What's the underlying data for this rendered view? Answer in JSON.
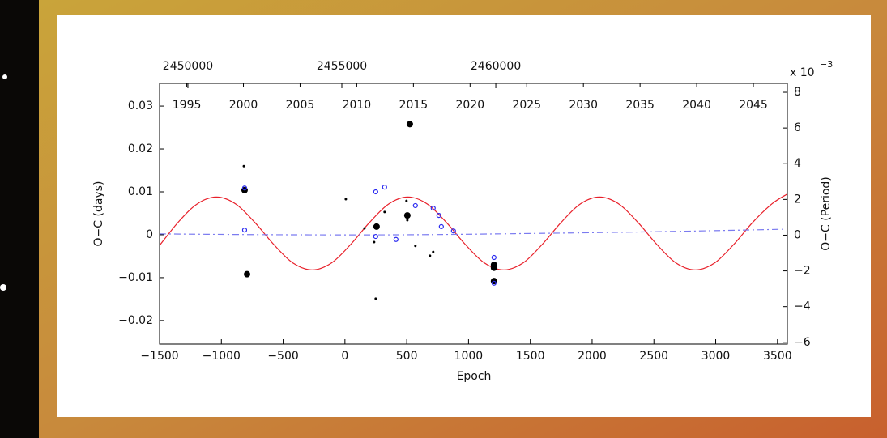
{
  "chart_data": {
    "type": "scatter",
    "xlabel": "Epoch",
    "ylabel": "O−C (days)",
    "y2label": "O−C (Period)",
    "y2_scale_label": "x 10",
    "y2_scale_exponent": "−3",
    "xlim": [
      -1500,
      3580
    ],
    "xticks": [
      {
        "value": -1500,
        "label": "−1500"
      },
      {
        "value": -1000,
        "label": "−1000"
      },
      {
        "value": -500,
        "label": "−500"
      },
      0,
      500,
      1000,
      1500,
      2000,
      2500,
      3000,
      3500
    ],
    "ylim": [
      -0.0255,
      0.0353
    ],
    "yticks": [
      {
        "value": -0.02,
        "label": "−0.02"
      },
      {
        "value": -0.01,
        "label": "−0.01"
      },
      0,
      0.01,
      0.02,
      0.03
    ],
    "y2lim": [
      -6.1,
      8.5
    ],
    "y2ticks": [
      {
        "value": -6,
        "label": "−6"
      },
      {
        "value": -4,
        "label": "−4"
      },
      {
        "value": -2,
        "label": "−2"
      },
      0,
      2,
      4,
      6,
      8
    ],
    "x2lim": [
      2449080,
      2469470
    ],
    "x2ticks": [
      2450000,
      2455000,
      2460000
    ],
    "x3lim": [
      1992.6,
      2048.0
    ],
    "x3ticks": [
      1995,
      2000,
      2005,
      2010,
      2015,
      2020,
      2025,
      2030,
      2035,
      2040,
      2045
    ],
    "series": [
      {
        "style": "line",
        "color": "#e8202a",
        "x": [
          -1500,
          -1350,
          -1195,
          -1040,
          -885,
          -730,
          -575,
          -420,
          -265,
          -110,
          45,
          200,
          355,
          510,
          665,
          820,
          975,
          1130,
          1285,
          1440,
          1595,
          1750,
          1905,
          2060,
          2215,
          2370,
          2525,
          2680,
          2835,
          2990,
          3145,
          3300,
          3455,
          3580
        ],
        "values": [
          -0.0025,
          0.0029,
          0.0072,
          0.0088,
          0.0072,
          0.0029,
          -0.0023,
          -0.0066,
          -0.0082,
          -0.0066,
          -0.0023,
          0.0029,
          0.0072,
          0.0088,
          0.0072,
          0.0029,
          -0.0023,
          -0.0066,
          -0.0082,
          -0.0066,
          -0.0023,
          0.0029,
          0.0072,
          0.0088,
          0.0072,
          0.0029,
          -0.0023,
          -0.0066,
          -0.0082,
          -0.0066,
          -0.0023,
          0.0029,
          0.0072,
          0.0095
        ]
      },
      {
        "style": "dashdot",
        "color": "#7b7bf0",
        "x": [
          -1500,
          -500,
          500,
          1500,
          2500,
          3580
        ],
        "values": [
          0.0002,
          0.0,
          0.0,
          0.0003,
          0.0007,
          0.0013
        ]
      },
      {
        "style": "filled-large",
        "color": "#000000",
        "x": [
          -812,
          -792,
          256,
          505,
          525,
          1206,
          1206,
          1206
        ],
        "values": [
          0.0104,
          -0.0092,
          0.0019,
          0.0045,
          0.0258,
          -0.007,
          -0.0077,
          -0.0108
        ]
      },
      {
        "style": "filled-small",
        "color": "#000000",
        "x": [
          -818,
          7,
          158,
          236,
          249,
          321,
          498,
          505,
          570,
          688,
          714
        ],
        "values": [
          0.016,
          0.0083,
          0.0015,
          -0.0017,
          -0.0149,
          0.0053,
          0.0079,
          0.0034,
          -0.0026,
          -0.0049,
          -0.004
        ]
      },
      {
        "style": "open",
        "color": "#2a2af0",
        "x": [
          -812,
          -812,
          249,
          321,
          249,
          413,
          570,
          714,
          760,
          780,
          878,
          1206,
          1206
        ],
        "values": [
          0.0109,
          0.0011,
          0.01,
          0.0111,
          -0.0004,
          -0.0011,
          0.0068,
          0.0062,
          0.0045,
          0.0019,
          0.0009,
          -0.0053,
          -0.0113
        ]
      }
    ]
  }
}
